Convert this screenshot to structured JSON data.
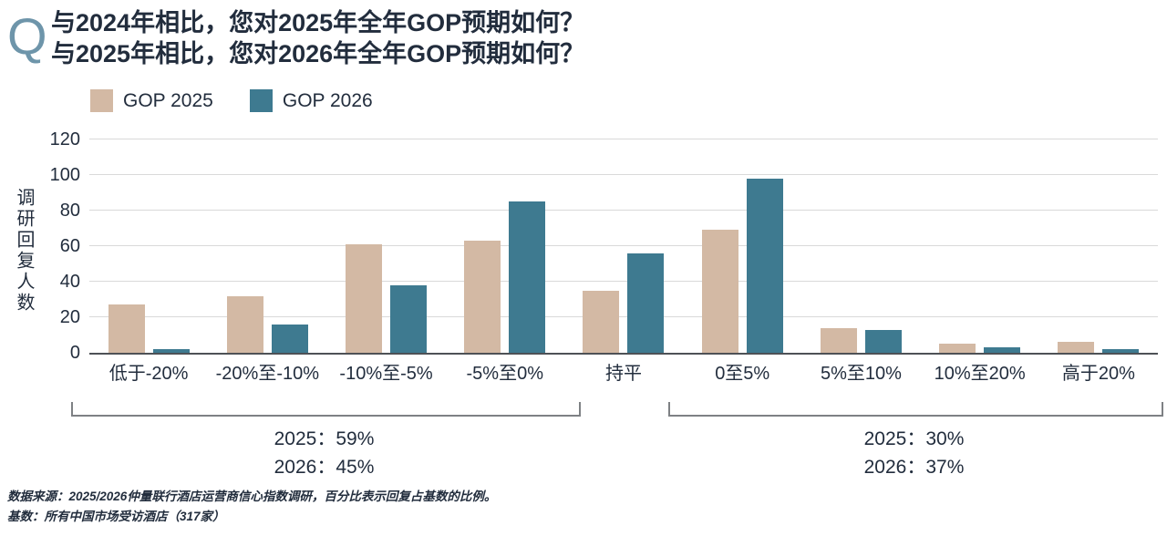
{
  "question": {
    "prefix": "Q",
    "line1": "与2024年相比，您对2025年全年GOP预期如何？",
    "line2": "与2025年相比，您对2026年全年GOP预期如何？"
  },
  "legend": [
    {
      "label": "GOP 2025",
      "color": "#d3b9a4"
    },
    {
      "label": "GOP 2026",
      "color": "#3e7a90"
    }
  ],
  "chart_data": {
    "type": "bar",
    "title": "",
    "xlabel": "",
    "ylabel": "调研回复人数",
    "ylim": [
      0,
      120
    ],
    "yticks": [
      0,
      20,
      40,
      60,
      80,
      100,
      120
    ],
    "grid": true,
    "legend_position": "top-left",
    "categories": [
      "低于-20%",
      "-20%至-10%",
      "-10%至-5%",
      "-5%至0%",
      "持平",
      "0至5%",
      "5%至10%",
      "10%至20%",
      "高于20%"
    ],
    "series": [
      {
        "name": "GOP 2025",
        "color": "#d3b9a4",
        "values": [
          27,
          32,
          61,
          63,
          35,
          69,
          14,
          5,
          6
        ]
      },
      {
        "name": "GOP 2026",
        "color": "#3e7a90",
        "values": [
          2,
          16,
          38,
          85,
          56,
          98,
          13,
          3,
          2
        ]
      }
    ]
  },
  "annotations": {
    "left": {
      "line1": "2025：59%",
      "line2": "2026：45%"
    },
    "right": {
      "line1": "2025：30%",
      "line2": "2026：37%"
    }
  },
  "footer": {
    "source": "数据来源：2025/2026仲量联行酒店运营商信心指数调研，百分比表示回复占基数的比例。",
    "base": "基数：所有中国市场受访酒店（317家）"
  },
  "colors": {
    "text": "#222d3d",
    "q_mark": "#6e95aa",
    "gridline": "#d9d9d9",
    "axis_line": "#4e5156",
    "bracket": "#7e8184"
  }
}
